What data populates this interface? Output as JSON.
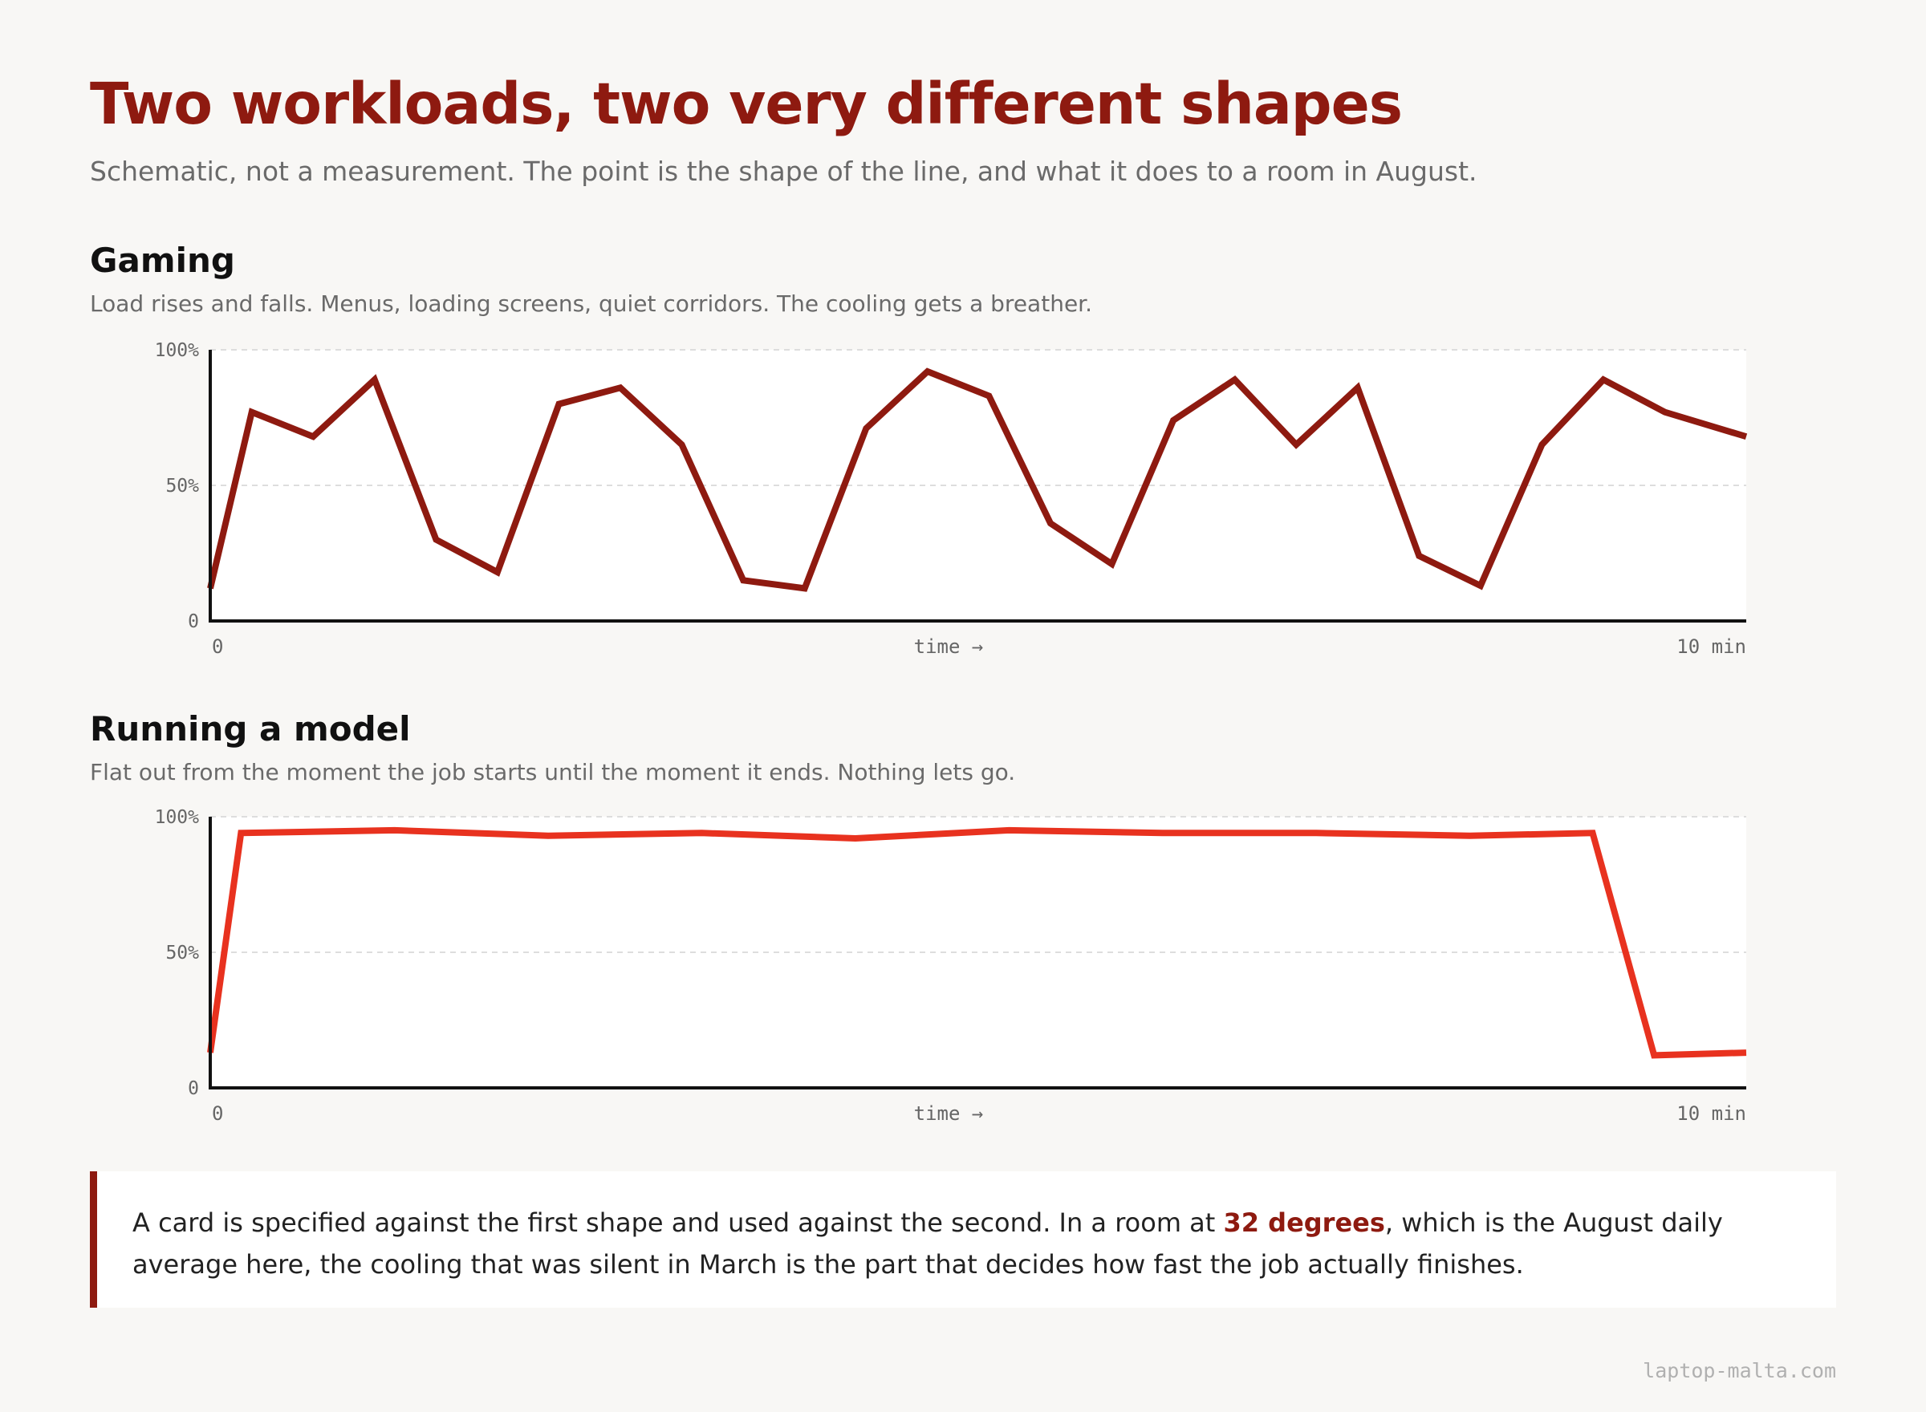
{
  "header": {
    "title": "Two workloads, two very different shapes",
    "subtitle": "Schematic, not a measurement. The point is the shape of the line, and what it does to a room in August."
  },
  "sections": [
    {
      "title": "Gaming",
      "description": "Load rises and falls. Menus, loading screens, quiet corridors. The cooling gets a breather."
    },
    {
      "title": "Running a model",
      "description": "Flat out from the moment the job starts until the moment it ends. Nothing lets go."
    }
  ],
  "callout": {
    "text_before": "A card is specified against the first shape and used against the second. In a room at ",
    "highlight": "32 degrees",
    "text_after": ", which is the August daily average here, the cooling that was silent in March is the part that decides how fast the job actually finishes."
  },
  "footer": {
    "site": "laptop-malta.com"
  },
  "colors": {
    "accent": "#8e1a10",
    "model_line": "#e8321f",
    "background": "#f8f7f5"
  },
  "chart_data": [
    {
      "type": "line",
      "title": "Gaming",
      "xlabel": "time →",
      "x_tick_labels": [
        "0",
        "10 min"
      ],
      "y_tick_labels": [
        "100%",
        "50%",
        "0"
      ],
      "ylim": [
        0,
        100
      ],
      "xlim": [
        0,
        10
      ],
      "grid": true,
      "line_color": "#8e1a10",
      "series": [
        {
          "x": [
            0,
            0.27,
            0.67,
            1.07,
            1.47,
            1.87,
            2.27,
            2.67,
            3.07,
            3.47,
            3.87,
            4.27,
            4.67,
            5.07,
            5.47,
            5.87,
            6.27,
            6.67,
            7.07,
            7.47,
            7.87,
            8.27,
            8.67,
            9.07,
            9.47,
            10
          ],
          "y": [
            12,
            77,
            68,
            89,
            30,
            18,
            80,
            86,
            65,
            15,
            12,
            71,
            92,
            83,
            36,
            21,
            74,
            89,
            65,
            86,
            24,
            13,
            65,
            89,
            77,
            68
          ]
        }
      ]
    },
    {
      "type": "line",
      "title": "Running a model",
      "xlabel": "time →",
      "x_tick_labels": [
        "0",
        "10 min"
      ],
      "y_tick_labels": [
        "100%",
        "50%",
        "0"
      ],
      "ylim": [
        0,
        100
      ],
      "xlim": [
        0,
        10
      ],
      "grid": true,
      "line_color": "#e8321f",
      "series": [
        {
          "x": [
            0,
            0.2,
            1.2,
            2.2,
            3.2,
            4.2,
            5.2,
            6.2,
            7.2,
            8.2,
            9.0,
            9.4,
            10
          ],
          "y": [
            13,
            94,
            95,
            93,
            94,
            92,
            95,
            94,
            94,
            93,
            94,
            12,
            13
          ]
        }
      ]
    }
  ]
}
